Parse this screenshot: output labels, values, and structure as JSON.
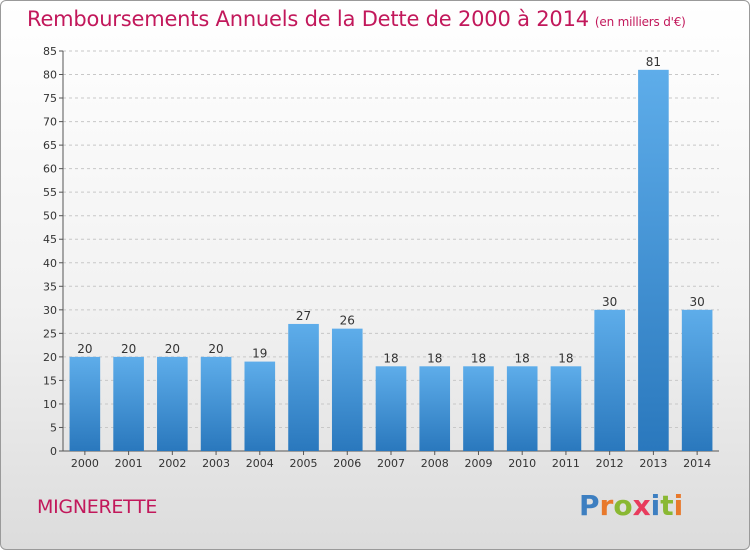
{
  "header": {
    "title": "Remboursements Annuels de la Dette de 2000 à 2014",
    "unit": "(en milliers d'€)"
  },
  "footer": {
    "commune": "MIGNERETTE",
    "logo": {
      "letters": [
        "P",
        "r",
        "o",
        "x",
        "i",
        "t",
        "i"
      ],
      "colors": [
        "#3d7fc1",
        "#e8792b",
        "#8ab833",
        "#e83c5d",
        "#3d7fc1",
        "#8ab833",
        "#e8792b"
      ]
    }
  },
  "chart_data": {
    "type": "bar",
    "categories": [
      "2000",
      "2001",
      "2002",
      "2003",
      "2004",
      "2005",
      "2006",
      "2007",
      "2008",
      "2009",
      "2010",
      "2011",
      "2012",
      "2013",
      "2014"
    ],
    "values": [
      20,
      20,
      20,
      20,
      19,
      27,
      26,
      18,
      18,
      18,
      18,
      18,
      30,
      81,
      30
    ],
    "ylim": [
      0,
      85
    ],
    "yticks": [
      0,
      5,
      10,
      15,
      20,
      25,
      30,
      35,
      40,
      45,
      50,
      55,
      60,
      65,
      70,
      75,
      80,
      85
    ],
    "grid": true,
    "bar_color": "#3b8fd6"
  }
}
